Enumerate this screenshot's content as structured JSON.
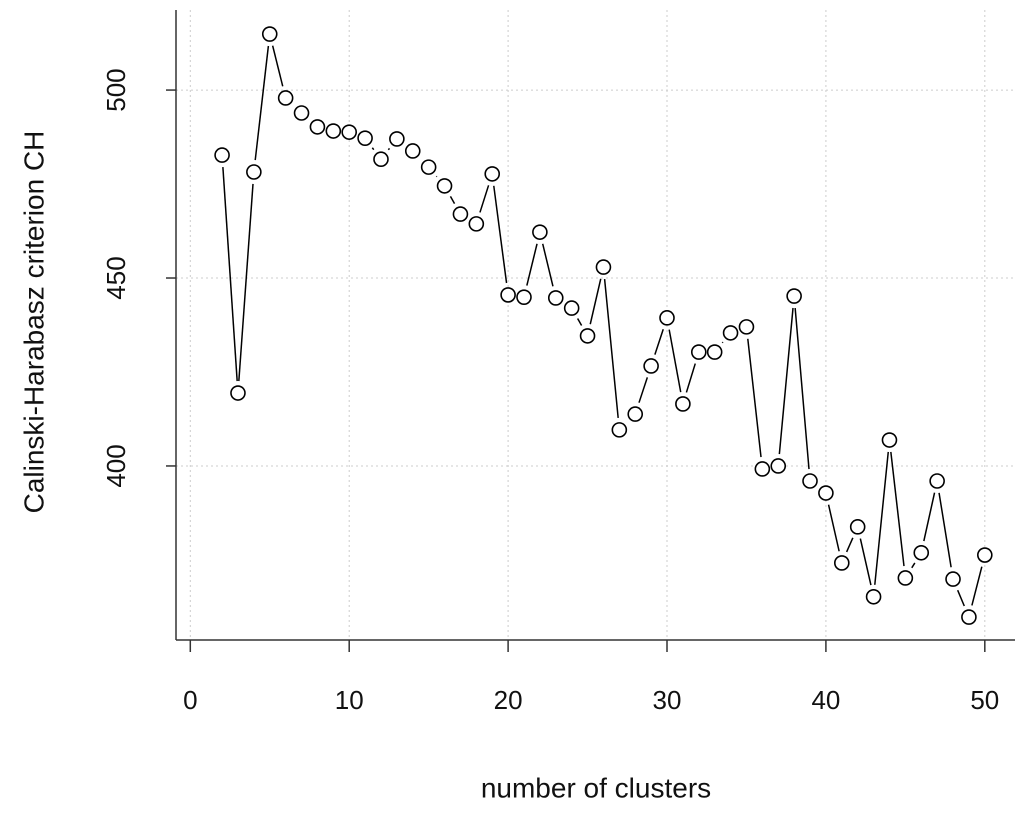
{
  "chart_data": {
    "type": "line",
    "x_label": "number of clusters",
    "y_label": "Calinski-Harabasz criterion CH",
    "x": [
      2,
      3,
      4,
      5,
      6,
      7,
      8,
      9,
      10,
      11,
      12,
      13,
      14,
      15,
      16,
      17,
      18,
      19,
      20,
      21,
      22,
      23,
      24,
      25,
      26,
      27,
      28,
      29,
      30,
      31,
      32,
      33,
      34,
      35,
      36,
      37,
      38,
      39,
      40,
      41,
      42,
      43,
      44,
      45,
      46,
      47,
      48,
      49,
      50
    ],
    "series": [
      {
        "name": "CH",
        "color": "#000000",
        "values": [
          482.7,
          419.4,
          478.2,
          514.9,
          497.9,
          493.9,
          490.2,
          489.1,
          488.8,
          487.2,
          481.6,
          487.0,
          483.8,
          479.5,
          474.5,
          467.0,
          464.4,
          477.7,
          445.5,
          444.9,
          462.2,
          444.7,
          442.0,
          434.6,
          452.9,
          409.6,
          413.8,
          426.6,
          439.4,
          416.5,
          430.3,
          430.3,
          435.4,
          437.0,
          399.2,
          400.0,
          445.2,
          396.0,
          392.8,
          374.2,
          383.8,
          365.2,
          406.9,
          370.2,
          376.9,
          396.0,
          369.9,
          359.8,
          376.3
        ]
      }
    ],
    "xlim": [
      -0.9,
      51.9
    ],
    "xticks": [
      0,
      10,
      20,
      30,
      40,
      50
    ],
    "ylim": [
      353.7,
      521.3
    ],
    "yticks": [
      400,
      450,
      500
    ],
    "grid": true
  }
}
